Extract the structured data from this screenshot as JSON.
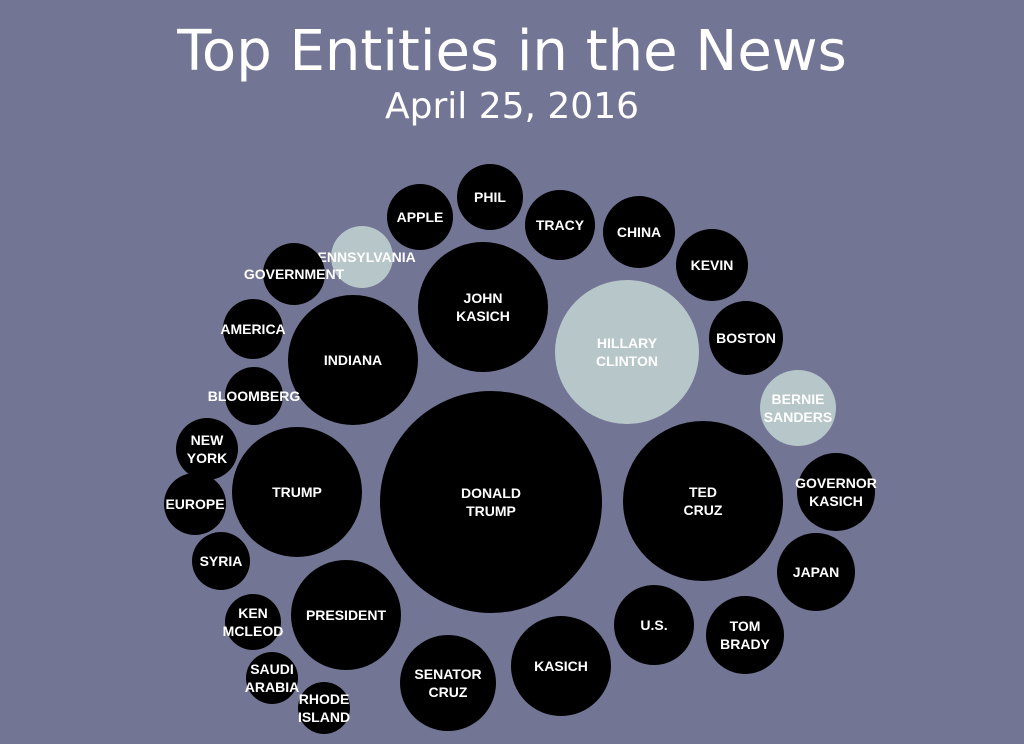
{
  "chart_data": {
    "type": "bubble",
    "title": "Top Entities in the News",
    "subtitle": "April 25, 2016",
    "colors": {
      "background": "#737595",
      "default": "#000000",
      "highlight": "#b7c6c8",
      "default_text": "#ffffff",
      "highlight_text": "#ffffff"
    },
    "entities": [
      {
        "name": "DONALD TRUMP",
        "lines": [
          "DONALD",
          "TRUMP"
        ],
        "value": 100,
        "highlight": false
      },
      {
        "name": "TED CRUZ",
        "lines": [
          "TED",
          "CRUZ"
        ],
        "value": 56,
        "highlight": false
      },
      {
        "name": "HILLARY CLINTON",
        "lines": [
          "HILLARY",
          "CLINTON"
        ],
        "value": 43,
        "highlight": true
      },
      {
        "name": "JOHN KASICH",
        "lines": [
          "JOHN",
          "KASICH"
        ],
        "value": 36,
        "highlight": false
      },
      {
        "name": "INDIANA",
        "lines": [
          "INDIANA"
        ],
        "value": 35,
        "highlight": false
      },
      {
        "name": "TRUMP",
        "lines": [
          "TRUMP"
        ],
        "value": 35,
        "highlight": false
      },
      {
        "name": "PRESIDENT",
        "lines": [
          "PRESIDENT"
        ],
        "value": 26,
        "highlight": false
      },
      {
        "name": "SENATOR CRUZ",
        "lines": [
          "SENATOR",
          "CRUZ"
        ],
        "value": 18,
        "highlight": false
      },
      {
        "name": "KASICH",
        "lines": [
          "KASICH"
        ],
        "value": 21,
        "highlight": false
      },
      {
        "name": "U.S.",
        "lines": [
          "U.S."
        ],
        "value": 14,
        "highlight": false
      },
      {
        "name": "TOM BRADY",
        "lines": [
          "TOM",
          "BRADY"
        ],
        "value": 13,
        "highlight": false
      },
      {
        "name": "JAPAN",
        "lines": [
          "JAPAN"
        ],
        "value": 13,
        "highlight": false
      },
      {
        "name": "GOVERNOR KASICH",
        "lines": [
          "GOVERNOR",
          "KASICH"
        ],
        "value": 13,
        "highlight": false
      },
      {
        "name": "BERNIE SANDERS",
        "lines": [
          "BERNIE",
          "SANDERS"
        ],
        "value": 12,
        "highlight": true
      },
      {
        "name": "BOSTON",
        "lines": [
          "BOSTON"
        ],
        "value": 11,
        "highlight": false
      },
      {
        "name": "KEVIN",
        "lines": [
          "KEVIN"
        ],
        "value": 11,
        "highlight": false
      },
      {
        "name": "CHINA",
        "lines": [
          "CHINA"
        ],
        "value": 11,
        "highlight": false
      },
      {
        "name": "TRACY",
        "lines": [
          "TRACY"
        ],
        "value": 11,
        "highlight": false
      },
      {
        "name": "PHIL",
        "lines": [
          "PHIL"
        ],
        "value": 9,
        "highlight": false
      },
      {
        "name": "APPLE",
        "lines": [
          "APPLE"
        ],
        "value": 9,
        "highlight": false
      },
      {
        "name": "PENNSYLVANIA",
        "lines": [
          "PENNSYLVANIA"
        ],
        "value": 8,
        "highlight": true
      },
      {
        "name": "GOVERNMENT",
        "lines": [
          "GOVERNMENT"
        ],
        "value": 8,
        "highlight": false
      },
      {
        "name": "AMERICA",
        "lines": [
          "AMERICA"
        ],
        "value": 7,
        "highlight": false
      },
      {
        "name": "BLOOMBERG",
        "lines": [
          "BLOOMBERG"
        ],
        "value": 7,
        "highlight": false
      },
      {
        "name": "NEW YORK",
        "lines": [
          "NEW",
          "YORK"
        ],
        "value": 7,
        "highlight": false
      },
      {
        "name": "EUROPE",
        "lines": [
          "EUROPE"
        ],
        "value": 7,
        "highlight": false
      },
      {
        "name": "SYRIA",
        "lines": [
          "SYRIA"
        ],
        "value": 6,
        "highlight": false
      },
      {
        "name": "KEN MCLEOD",
        "lines": [
          "KEN",
          "MCLEOD"
        ],
        "value": 6,
        "highlight": false
      },
      {
        "name": "SAUDI ARABIA",
        "lines": [
          "SAUDI",
          "ARABIA"
        ],
        "value": 5,
        "highlight": false
      },
      {
        "name": "RHODE ISLAND",
        "lines": [
          "RHODE",
          "ISLAND"
        ],
        "value": 5,
        "highlight": false
      }
    ]
  }
}
